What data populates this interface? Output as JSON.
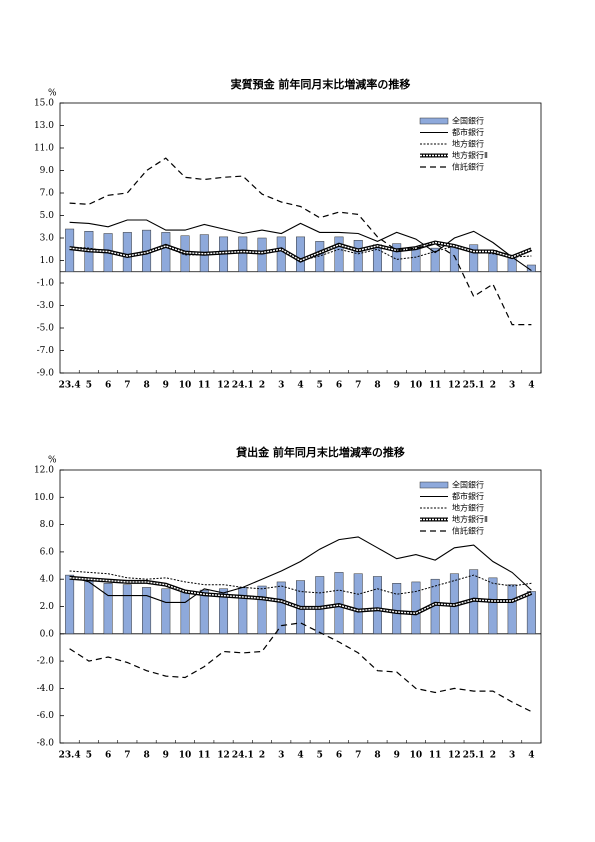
{
  "chart_data": [
    {
      "type": "bar_line",
      "title": "実質預金 前年同月末比増減率の推移",
      "y_unit": "%",
      "categories": [
        "23.4",
        "5",
        "6",
        "7",
        "8",
        "9",
        "10",
        "11",
        "12",
        "24.1",
        "2",
        "3",
        "4",
        "5",
        "6",
        "7",
        "8",
        "9",
        "10",
        "11",
        "12",
        "25.1",
        "2",
        "3",
        "4"
      ],
      "ylim": [
        -9,
        15
      ],
      "yticks": [
        {
          "value": 15,
          "label": "15.0"
        },
        {
          "value": 13,
          "label": "13.0"
        },
        {
          "value": 11,
          "label": "11.0"
        },
        {
          "value": 9,
          "label": "9.0"
        },
        {
          "value": 7,
          "label": "7.0"
        },
        {
          "value": 5,
          "label": "5.0"
        },
        {
          "value": 3,
          "label": "3.0"
        },
        {
          "value": 1,
          "label": "1.0"
        },
        {
          "value": -1,
          "label": "-1.0"
        },
        {
          "value": -3,
          "label": "-3.0"
        },
        {
          "value": -5,
          "label": "-5.0"
        },
        {
          "value": -7,
          "label": "-7.0"
        },
        {
          "value": -9,
          "label": "-9.0"
        }
      ],
      "series": [
        {
          "name": "全国銀行",
          "kind": "bar",
          "color": "#8ea9db",
          "values": [
            3.8,
            3.6,
            3.4,
            3.5,
            3.7,
            3.5,
            3.2,
            3.3,
            3.1,
            3.1,
            3.0,
            3.1,
            3.1,
            2.7,
            3.1,
            2.8,
            2.4,
            2.5,
            2.1,
            2.1,
            2.2,
            2.4,
            1.9,
            1.3,
            0.6
          ]
        },
        {
          "name": "都市銀行",
          "kind": "line",
          "line_style": "solid",
          "color": "#000000",
          "values": [
            4.4,
            4.3,
            4.0,
            4.6,
            4.6,
            3.7,
            3.7,
            4.2,
            3.8,
            3.4,
            3.7,
            3.4,
            4.3,
            3.5,
            3.5,
            3.4,
            2.7,
            3.5,
            2.9,
            1.7,
            3.0,
            3.6,
            2.6,
            1.3,
            0.1
          ]
        },
        {
          "name": "地方銀行",
          "kind": "line",
          "line_style": "dotted",
          "color": "#000000",
          "values": [
            2.2,
            2.1,
            1.8,
            1.5,
            1.6,
            2.2,
            1.5,
            1.5,
            1.6,
            1.7,
            1.6,
            2.0,
            1.0,
            1.4,
            2.0,
            1.6,
            2.0,
            1.1,
            1.3,
            1.8,
            2.3,
            1.8,
            1.6,
            1.3,
            1.4
          ]
        },
        {
          "name": "地方銀行Ⅱ",
          "kind": "line",
          "line_style": "double",
          "color": "#000000",
          "values": [
            2.1,
            1.9,
            1.8,
            1.4,
            1.7,
            2.3,
            1.7,
            1.6,
            1.7,
            1.8,
            1.7,
            2.0,
            1.0,
            1.7,
            2.4,
            1.9,
            2.3,
            1.9,
            2.1,
            2.6,
            2.3,
            1.8,
            1.8,
            1.3,
            2.0
          ]
        },
        {
          "name": "信託銀行",
          "kind": "line",
          "line_style": "dashed",
          "color": "#000000",
          "values": [
            6.1,
            6.0,
            6.8,
            7.0,
            9.0,
            10.1,
            8.4,
            8.2,
            8.4,
            8.5,
            6.9,
            6.2,
            5.8,
            4.8,
            5.3,
            5.1,
            3.1,
            1.9,
            2.1,
            2.5,
            1.4,
            -2.2,
            -1.1,
            -4.7,
            -4.7
          ]
        }
      ]
    },
    {
      "type": "bar_line",
      "title": "貸出金 前年同月末比増減率の推移",
      "y_unit": "%",
      "categories": [
        "23.4",
        "5",
        "6",
        "7",
        "8",
        "9",
        "10",
        "11",
        "12",
        "24.1",
        "2",
        "3",
        "4",
        "5",
        "6",
        "7",
        "8",
        "9",
        "10",
        "11",
        "12",
        "25.1",
        "2",
        "3",
        "4"
      ],
      "ylim": [
        -8,
        12
      ],
      "yticks": [
        {
          "value": 12,
          "label": "12.0"
        },
        {
          "value": 10,
          "label": "10.0"
        },
        {
          "value": 8,
          "label": "8.0"
        },
        {
          "value": 6,
          "label": "6.0"
        },
        {
          "value": 4,
          "label": "4.0"
        },
        {
          "value": 2,
          "label": "2.0"
        },
        {
          "value": 0,
          "label": "0.0"
        },
        {
          "value": -2,
          "label": "-2.0"
        },
        {
          "value": -4,
          "label": "-4.0"
        },
        {
          "value": -6,
          "label": "-6.0"
        },
        {
          "value": -8,
          "label": "-8.0"
        }
      ],
      "series": [
        {
          "name": "全国銀行",
          "kind": "bar",
          "color": "#8ea9db",
          "values": [
            4.3,
            4.0,
            3.7,
            3.6,
            3.4,
            3.3,
            3.1,
            3.2,
            3.3,
            3.4,
            3.5,
            3.8,
            3.9,
            4.2,
            4.5,
            4.4,
            4.2,
            3.7,
            3.8,
            4.0,
            4.4,
            4.7,
            4.1,
            3.6,
            3.1
          ]
        },
        {
          "name": "都市銀行",
          "kind": "line",
          "line_style": "solid",
          "color": "#000000",
          "values": [
            4.2,
            3.8,
            2.8,
            2.8,
            2.8,
            2.3,
            2.3,
            3.3,
            3.0,
            3.4,
            4.0,
            4.6,
            5.3,
            6.2,
            6.9,
            7.1,
            6.3,
            5.5,
            5.8,
            5.4,
            6.3,
            6.5,
            5.3,
            4.5,
            3.2
          ]
        },
        {
          "name": "地方銀行",
          "kind": "line",
          "line_style": "dotted",
          "color": "#000000",
          "values": [
            4.6,
            4.5,
            4.4,
            4.1,
            4.0,
            4.1,
            3.8,
            3.6,
            3.6,
            3.4,
            3.3,
            3.5,
            3.1,
            3.0,
            3.2,
            2.9,
            3.3,
            2.9,
            3.1,
            3.5,
            3.9,
            4.3,
            3.7,
            3.5,
            3.7
          ]
        },
        {
          "name": "地方銀行Ⅱ",
          "kind": "line",
          "line_style": "double",
          "color": "#000000",
          "values": [
            4.1,
            4.0,
            3.9,
            3.8,
            3.8,
            3.6,
            3.1,
            2.9,
            2.8,
            2.7,
            2.6,
            2.4,
            1.9,
            1.9,
            2.1,
            1.7,
            1.8,
            1.6,
            1.5,
            2.2,
            2.1,
            2.5,
            2.4,
            2.4,
            3.0
          ]
        },
        {
          "name": "信託銀行",
          "kind": "line",
          "line_style": "dashed",
          "color": "#000000",
          "values": [
            -1.1,
            -2.0,
            -1.7,
            -2.1,
            -2.7,
            -3.1,
            -3.2,
            -2.4,
            -1.3,
            -1.4,
            -1.3,
            0.6,
            0.8,
            0.1,
            -0.6,
            -1.4,
            -2.7,
            -2.8,
            -4.0,
            -4.3,
            -4.0,
            -4.2,
            -4.2,
            -5.0,
            -5.7
          ]
        }
      ]
    }
  ]
}
